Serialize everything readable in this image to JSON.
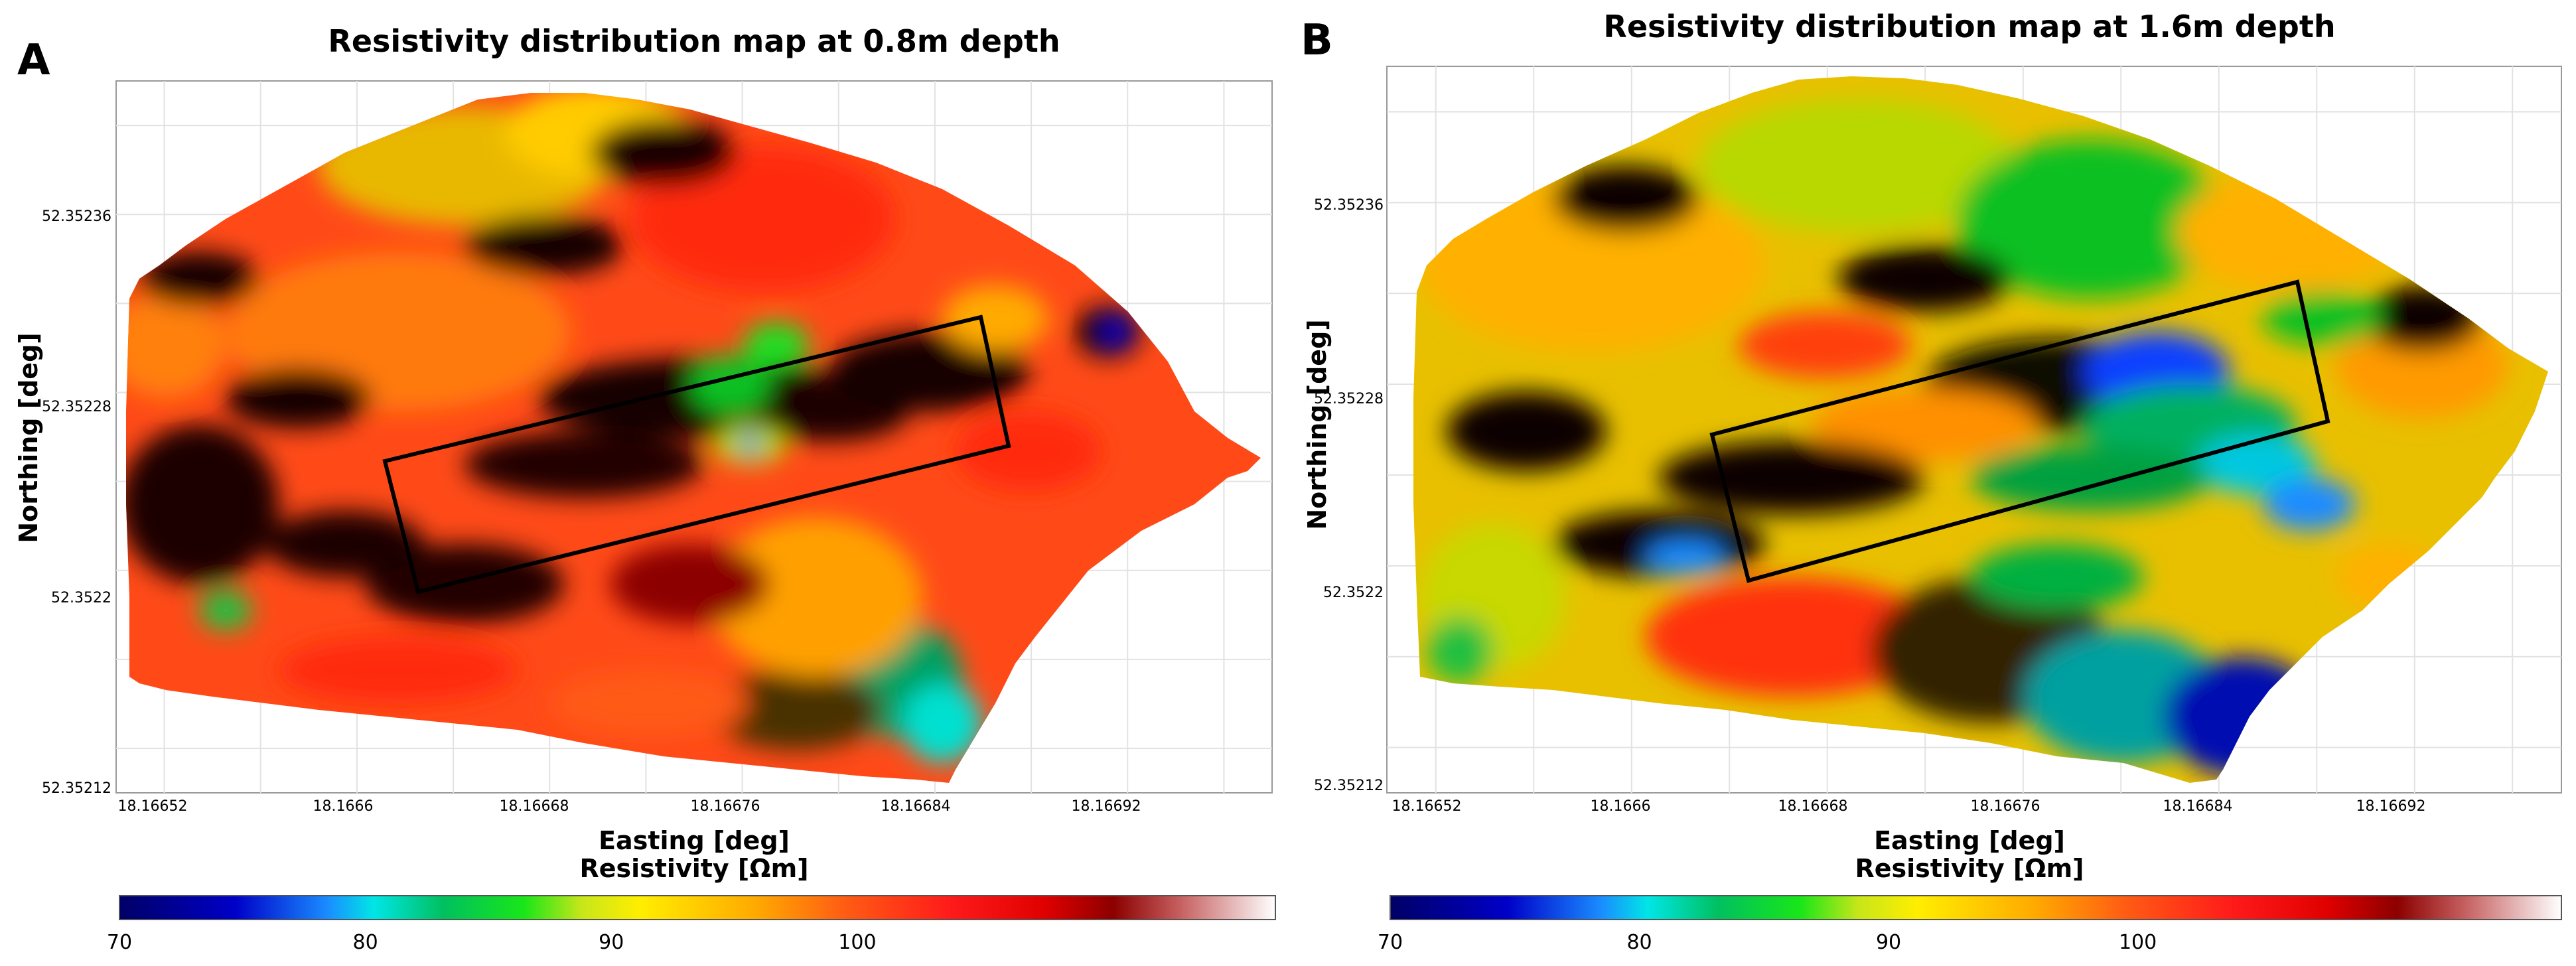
{
  "chart_data": [
    {
      "type": "heatmap",
      "panel": "A",
      "title": "Resistivity distribution map at 0.8m depth",
      "xlabel": "Easting [deg]",
      "ylabel": "Northing [deg]",
      "x_ticks": [
        "18.16652",
        "18.1666",
        "18.16668",
        "18.16676",
        "18.16684",
        "18.16692"
      ],
      "y_ticks": [
        "52.35236",
        "52.35228",
        "52.3522",
        "52.35212"
      ],
      "xlim": [
        18.16651,
        18.167
      ],
      "ylim": [
        52.35212,
        52.35241
      ],
      "colorbar": {
        "label": "Resistivity [Ωm]",
        "ticks": [
          "70",
          "80",
          "90",
          "100"
        ],
        "range": [
          70,
          117
        ]
      },
      "dominant_range": "95-110 Ωm",
      "mean_resistivity": 98,
      "outline": "rotated rectangle (survey area)",
      "grid": true
    },
    {
      "type": "heatmap",
      "panel": "B",
      "title": "Resistivity distribution map at 1.6m depth",
      "xlabel": "Easting [deg]",
      "ylabel": "Northing [deg]",
      "x_ticks": [
        "18.16652",
        "18.1666",
        "18.16668",
        "18.16676",
        "18.16684",
        "18.16692"
      ],
      "y_ticks": [
        "52.35236",
        "52.35228",
        "52.3522",
        "52.35212"
      ],
      "xlim": [
        18.16651,
        18.167
      ],
      "ylim": [
        52.35212,
        52.35241
      ],
      "colorbar": {
        "label": "Resistivity [Ωm]",
        "ticks": [
          "70",
          "80",
          "90",
          "100"
        ],
        "range": [
          70,
          117
        ]
      },
      "dominant_range": "85-100 Ωm",
      "mean_resistivity": 92,
      "outline": "rotated rectangle (survey area)",
      "grid": true
    }
  ],
  "colormap": [
    "#000066",
    "#0000c8",
    "#1a8cff",
    "#00e6e6",
    "#00c060",
    "#19e619",
    "#c8e619",
    "#ffee00",
    "#ffaa00",
    "#ff5a14",
    "#ff1a1a",
    "#e00000",
    "#8c0000",
    "#c86464",
    "#ffffff"
  ]
}
